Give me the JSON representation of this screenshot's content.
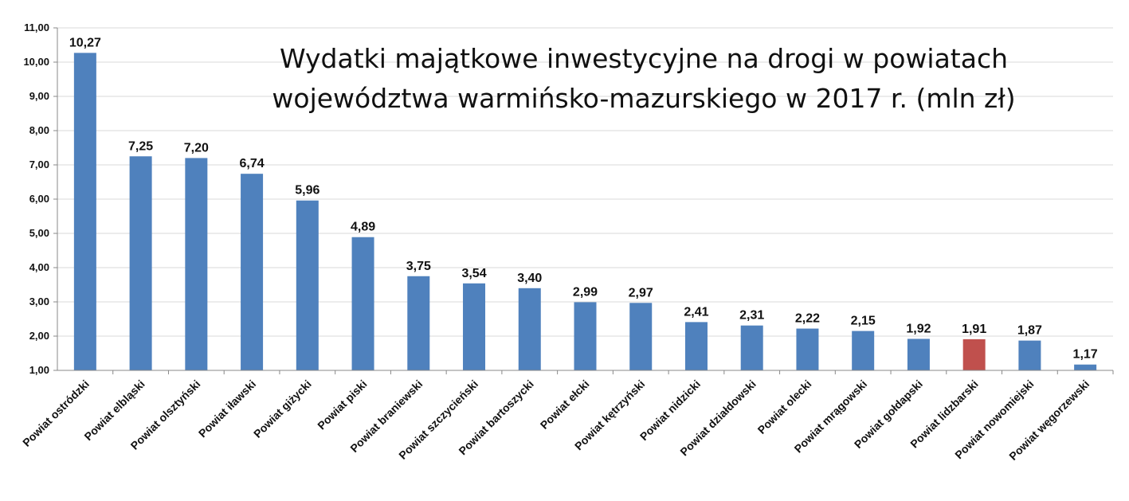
{
  "chart_data": {
    "type": "bar",
    "title_lines": [
      "Wydatki majątkowe inwestycyjne na drogi w powiatach",
      "województwa warmińsko-mazurskiego w 2017 r. (mln zł)"
    ],
    "categories": [
      "Powiat ostródzki",
      "Powiat elbląski",
      "Powiat olsztyński",
      "Powiat iławski",
      "Powiat giżycki",
      "Powiat piski",
      "Powiat braniewski",
      "Powiat szczycieński",
      "Powiat bartoszycki",
      "Powiat ełcki",
      "Powiat kętrzyński",
      "Powiat nidzicki",
      "Powiat działdowski",
      "Powiat olecki",
      "Powiat mrągowski",
      "Powiat gołdapski",
      "Powiat lidzbarski",
      "Powiat nowomiejski",
      "Powiat węgorzewski"
    ],
    "values": [
      10.27,
      7.25,
      7.2,
      6.74,
      5.96,
      4.89,
      3.75,
      3.54,
      3.4,
      2.99,
      2.97,
      2.41,
      2.31,
      2.22,
      2.15,
      1.92,
      1.91,
      1.87,
      1.17
    ],
    "data_labels": [
      "10,27",
      "7,25",
      "7,20",
      "6,74",
      "5,96",
      "4,89",
      "3,75",
      "3,54",
      "3,40",
      "2,99",
      "2,97",
      "2,41",
      "2,31",
      "2,22",
      "2,15",
      "1,92",
      "1,91",
      "1,87",
      "1,17"
    ],
    "ylim": [
      1,
      11
    ],
    "yticks": [
      1,
      2,
      3,
      4,
      5,
      6,
      7,
      8,
      9,
      10,
      11
    ],
    "ytick_labels": [
      "1,00",
      "2,00",
      "3,00",
      "4,00",
      "5,00",
      "6,00",
      "7,00",
      "8,00",
      "9,00",
      "10,00",
      "11,00"
    ],
    "highlight_category": "Powiat lidzbarski",
    "grid": true,
    "legend": "none",
    "colors": {
      "bar": "#4f81bd",
      "bar_highlight": "#c0504d",
      "grid": "#d9d9d9",
      "axis": "#888888"
    }
  }
}
